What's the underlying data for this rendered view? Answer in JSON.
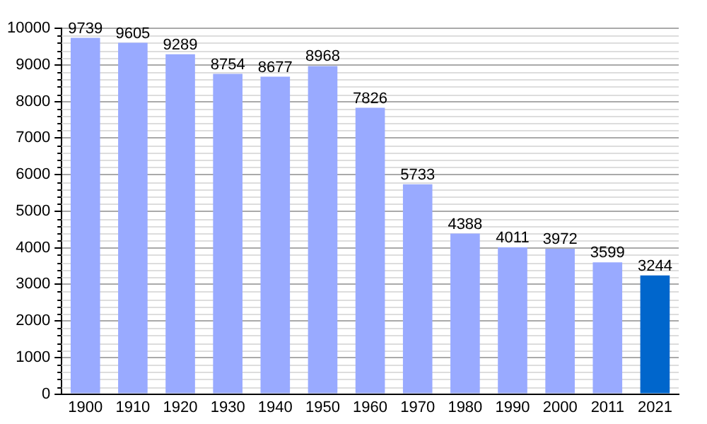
{
  "chart_data": {
    "type": "bar",
    "categories": [
      "1900",
      "1910",
      "1920",
      "1930",
      "1940",
      "1950",
      "1960",
      "1970",
      "1980",
      "1990",
      "2000",
      "2011",
      "2021"
    ],
    "values": [
      9739,
      9605,
      9289,
      8754,
      8677,
      8968,
      7826,
      5733,
      4388,
      4011,
      3972,
      3599,
      3244
    ],
    "colors": [
      "#99aaff",
      "#99aaff",
      "#99aaff",
      "#99aaff",
      "#99aaff",
      "#99aaff",
      "#99aaff",
      "#99aaff",
      "#99aaff",
      "#99aaff",
      "#99aaff",
      "#99aaff",
      "#0066cc"
    ],
    "ylim": [
      0,
      10000
    ],
    "yticks": [
      0,
      1000,
      2000,
      3000,
      4000,
      5000,
      6000,
      7000,
      8000,
      9000,
      10000
    ],
    "grid": "y",
    "data_labels": true,
    "legend": false
  }
}
